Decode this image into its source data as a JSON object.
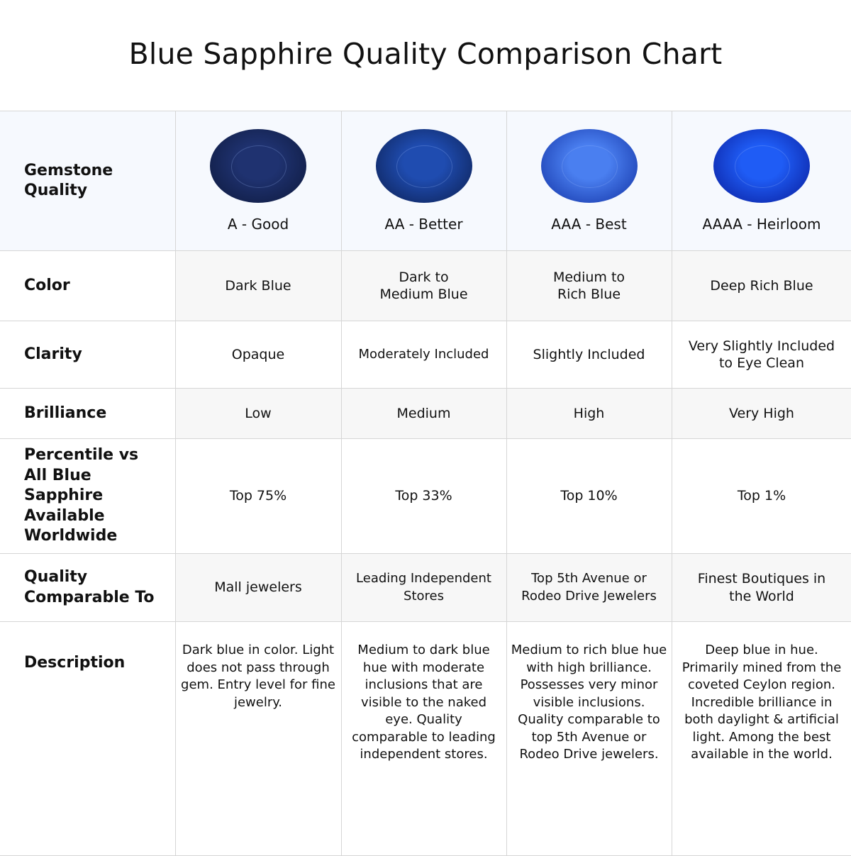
{
  "title": "Blue Sapphire Quality Comparison Chart",
  "row_labels": {
    "gemstone_quality": "Gemstone Quality",
    "color": "Color",
    "clarity": "Clarity",
    "brilliance": "Brilliance",
    "percentile": "Percentile vs All Blue Sapphire Available Worldwide",
    "comparable": "Quality Comparable To",
    "description": "Description"
  },
  "grades": [
    {
      "name": "A - Good",
      "gem_colors": [
        "#1f3270",
        "#0e1a3e"
      ],
      "color": "Dark Blue",
      "clarity": "Opaque",
      "brilliance": "Low",
      "percentile": "Top 75%",
      "comparable": "Mall jewelers",
      "description": "Dark blue in color. Light does not pass through gem. Entry level for fine jewelry."
    },
    {
      "name": "AA - Better",
      "gem_colors": [
        "#1f4cb0",
        "#0d2155"
      ],
      "color": "Dark to Medium Blue",
      "clarity": "Moderately Included",
      "brilliance": "Medium",
      "percentile": "Top 33%",
      "comparable": "Leading Independent Stores",
      "description": "Medium to dark blue hue with moderate inclusions that are visible to the naked eye. Quality comparable to leading independent stores."
    },
    {
      "name": "AAA - Best",
      "gem_colors": [
        "#4a7ff0",
        "#1536a8"
      ],
      "color": "Medium to Rich Blue",
      "clarity": "Slightly Included",
      "brilliance": "High",
      "percentile": "Top 10%",
      "comparable": "Top 5th Avenue or Rodeo Drive Jewelers",
      "description": "Medium to rich blue hue with high brilliance. Possesses very minor visible inclusions. Quality comparable to top 5th Avenue or Rodeo Drive jewelers."
    },
    {
      "name": "AAAA - Heirloom",
      "gem_colors": [
        "#1f5cf5",
        "#0a1f9e"
      ],
      "color": "Deep Rich Blue",
      "clarity": "Very Slightly Included to Eye Clean",
      "brilliance": "Very High",
      "percentile": "Top 1%",
      "comparable": "Finest Boutiques in the World",
      "description": "Deep blue in hue. Primarily mined from the coveted Ceylon region. Incredible brilliance in both daylight & artificial light. Among the best available in the world."
    }
  ]
}
